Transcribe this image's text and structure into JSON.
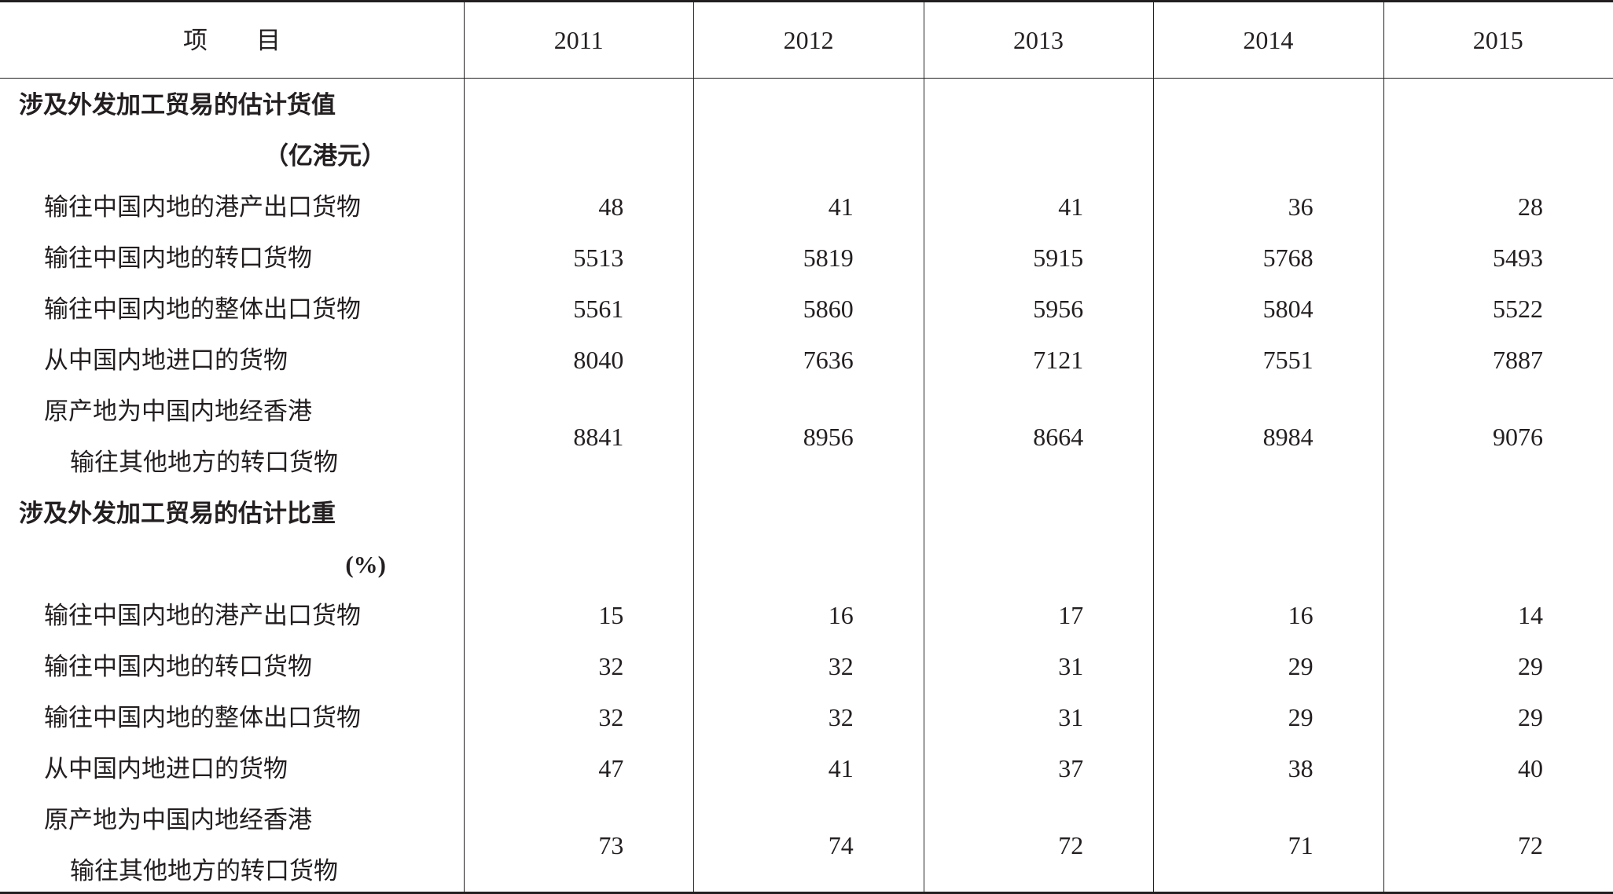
{
  "table": {
    "header": [
      "项　　目",
      "2011",
      "2012",
      "2013",
      "2014",
      "2015"
    ],
    "sections": [
      {
        "title": "涉及外发加工贸易的估计货值",
        "unit": "（亿港元）",
        "rows": [
          {
            "label": [
              "输往中国内地的港产出口货物"
            ],
            "values": [
              48,
              41,
              41,
              36,
              28
            ]
          },
          {
            "label": [
              "输往中国内地的转口货物"
            ],
            "values": [
              5513,
              5819,
              5915,
              5768,
              5493
            ]
          },
          {
            "label": [
              "输往中国内地的整体出口货物"
            ],
            "values": [
              5561,
              5860,
              5956,
              5804,
              5522
            ]
          },
          {
            "label": [
              "从中国内地进口的货物"
            ],
            "values": [
              8040,
              7636,
              7121,
              7551,
              7887
            ]
          },
          {
            "label": [
              "原产地为中国内地经香港",
              "输往其他地方的转口货物"
            ],
            "values": [
              8841,
              8956,
              8664,
              8984,
              9076
            ]
          }
        ]
      },
      {
        "title": "涉及外发加工贸易的估计比重",
        "unit": "(%)",
        "rows": [
          {
            "label": [
              "输往中国内地的港产出口货物"
            ],
            "values": [
              15,
              16,
              17,
              16,
              14
            ]
          },
          {
            "label": [
              "输往中国内地的转口货物"
            ],
            "values": [
              32,
              32,
              31,
              29,
              29
            ]
          },
          {
            "label": [
              "输往中国内地的整体出口货物"
            ],
            "values": [
              32,
              32,
              31,
              29,
              29
            ]
          },
          {
            "label": [
              "从中国内地进口的货物"
            ],
            "values": [
              47,
              41,
              37,
              38,
              40
            ]
          },
          {
            "label": [
              "原产地为中国内地经香港",
              "输往其他地方的转口货物"
            ],
            "values": [
              73,
              74,
              72,
              71,
              72
            ]
          }
        ]
      }
    ]
  }
}
